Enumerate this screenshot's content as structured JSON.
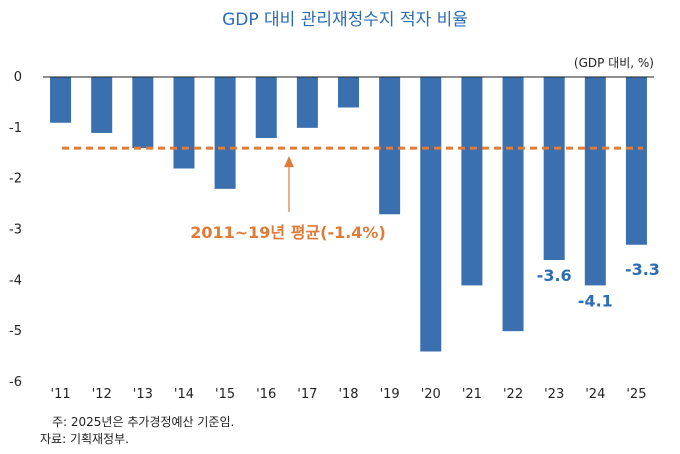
{
  "chart_data": {
    "type": "bar",
    "title": "GDP 대비 관리재정수지 적자 비율",
    "unit_label": "(GDP 대비, %)",
    "categories": [
      "'11",
      "'12",
      "'13",
      "'14",
      "'15",
      "'16",
      "'17",
      "'18",
      "'19",
      "'20",
      "'21",
      "'22",
      "'23",
      "'24",
      "'25"
    ],
    "values": [
      -0.9,
      -1.1,
      -1.4,
      -1.8,
      -2.2,
      -1.2,
      -1.0,
      -0.6,
      -2.7,
      -5.4,
      -4.1,
      -5.0,
      -3.6,
      -4.1,
      -3.3
    ],
    "ylim": [
      -6,
      0
    ],
    "yticks": [
      0,
      -1,
      -2,
      -3,
      -4,
      -5,
      -6
    ],
    "bar_color": "#3a6fb0",
    "average": {
      "value": -1.4,
      "label": "2011~19년 평균(-1.4%)",
      "color": "#e07b39"
    },
    "data_labels": [
      {
        "index": 12,
        "text": "-3.6"
      },
      {
        "index": 13,
        "text": "-4.1"
      },
      {
        "index": 14,
        "text": "-3.3"
      }
    ]
  },
  "footnotes": {
    "note": "주: 2025년은 추가경정예산 기준임.",
    "source": "자료: 기획재정부."
  }
}
